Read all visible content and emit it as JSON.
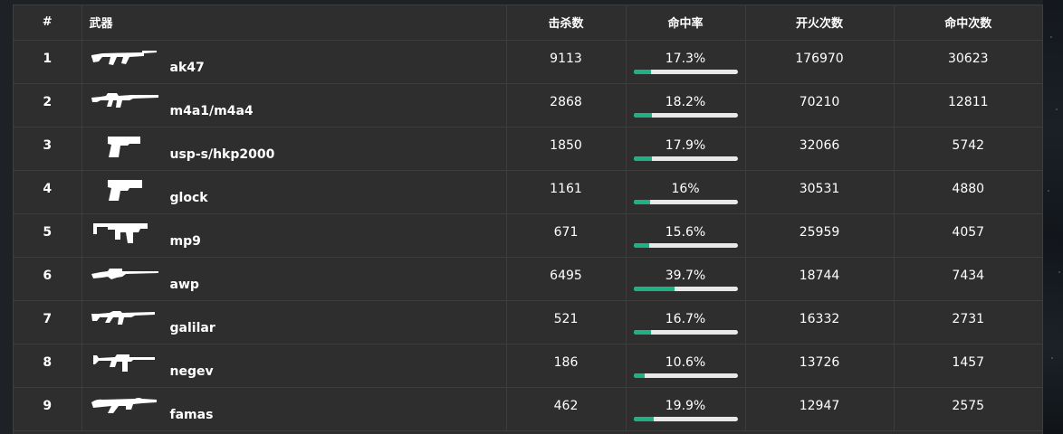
{
  "table": {
    "headers": {
      "rank": "#",
      "weapon": "武器",
      "kills": "击杀数",
      "accuracy": "命中率",
      "shots": "开火次数",
      "hits": "命中次数"
    },
    "colors": {
      "bar_fill": "#1bb386",
      "bar_track": "#e8e8e8",
      "row_bg": "#2e2e2e"
    },
    "rows": [
      {
        "rank": "1",
        "icon": "ak47-rifle-icon",
        "weapon": "ak47",
        "kills": "9113",
        "accuracy": "17.3%",
        "accuracy_value": 0.173,
        "shots": "176970",
        "hits": "30623"
      },
      {
        "rank": "2",
        "icon": "m4a1-rifle-icon",
        "weapon": "m4a1/m4a4",
        "kills": "2868",
        "accuracy": "18.2%",
        "accuracy_value": 0.182,
        "shots": "70210",
        "hits": "12811"
      },
      {
        "rank": "3",
        "icon": "usp-pistol-icon",
        "weapon": "usp-s/hkp2000",
        "kills": "1850",
        "accuracy": "17.9%",
        "accuracy_value": 0.179,
        "shots": "32066",
        "hits": "5742"
      },
      {
        "rank": "4",
        "icon": "glock-pistol-icon",
        "weapon": "glock",
        "kills": "1161",
        "accuracy": "16%",
        "accuracy_value": 0.16,
        "shots": "30531",
        "hits": "4880"
      },
      {
        "rank": "5",
        "icon": "mp9-smg-icon",
        "weapon": "mp9",
        "kills": "671",
        "accuracy": "15.6%",
        "accuracy_value": 0.156,
        "shots": "25959",
        "hits": "4057"
      },
      {
        "rank": "6",
        "icon": "awp-sniper-icon",
        "weapon": "awp",
        "kills": "6495",
        "accuracy": "39.7%",
        "accuracy_value": 0.397,
        "shots": "18744",
        "hits": "7434"
      },
      {
        "rank": "7",
        "icon": "galilar-rifle-icon",
        "weapon": "galilar",
        "kills": "521",
        "accuracy": "16.7%",
        "accuracy_value": 0.167,
        "shots": "16332",
        "hits": "2731"
      },
      {
        "rank": "8",
        "icon": "negev-lmg-icon",
        "weapon": "negev",
        "kills": "186",
        "accuracy": "10.6%",
        "accuracy_value": 0.106,
        "shots": "13726",
        "hits": "1457"
      },
      {
        "rank": "9",
        "icon": "famas-rifle-icon",
        "weapon": "famas",
        "kills": "462",
        "accuracy": "19.9%",
        "accuracy_value": 0.199,
        "shots": "12947",
        "hits": "2575"
      }
    ]
  }
}
